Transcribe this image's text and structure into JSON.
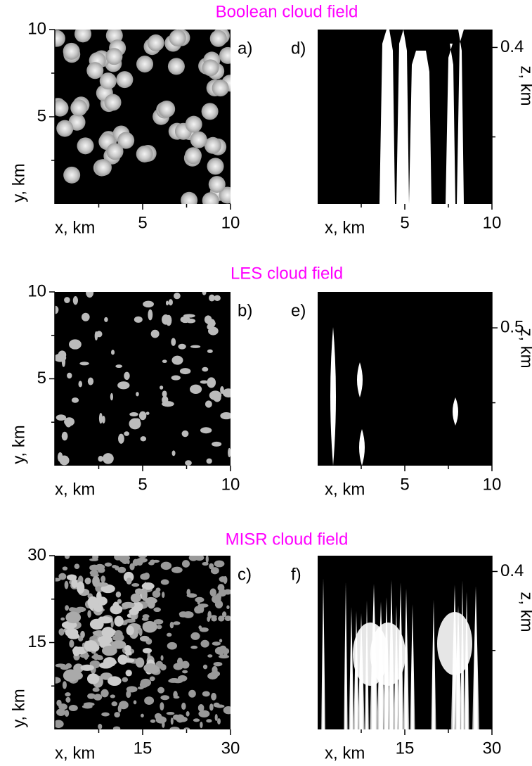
{
  "chart_data": [
    {
      "type": "image",
      "title": "Boolean cloud field",
      "panel_label": "a)",
      "xlabel": "x, km",
      "ylabel": "y, km",
      "xlim": [
        0,
        10
      ],
      "ylim": [
        0,
        10
      ],
      "xticks": [
        5,
        10
      ],
      "yticks": [
        5,
        10
      ],
      "xminor": [
        2.5,
        7.5
      ],
      "yminor": [
        2.5,
        7.5
      ],
      "y_axis_side": "left",
      "field": "boolean"
    },
    {
      "type": "image",
      "panel_label": "d)",
      "xlabel": "x, km",
      "ylabel": "z, km",
      "xlim": [
        0,
        10
      ],
      "ylim": [
        0.05,
        0.44
      ],
      "xticks": [
        5,
        10
      ],
      "yticks": [
        0.4
      ],
      "xminor": [
        2.5,
        7.5
      ],
      "yminor": [
        0.2
      ],
      "y_axis_side": "right",
      "field": "boolean-vertical"
    },
    {
      "type": "image",
      "title": "LES cloud field",
      "panel_label": "b)",
      "xlabel": "x, km",
      "ylabel": "y, km",
      "xlim": [
        0,
        10
      ],
      "ylim": [
        0,
        10
      ],
      "xticks": [
        5,
        10
      ],
      "yticks": [
        5,
        10
      ],
      "xminor": [
        2.5,
        7.5
      ],
      "yminor": [
        2.5,
        7.5
      ],
      "y_axis_side": "left",
      "field": "les"
    },
    {
      "type": "image",
      "panel_label": "e)",
      "xlabel": "x, km",
      "ylabel": "z, km",
      "xlim": [
        0,
        10
      ],
      "ylim": [
        0.04,
        0.62
      ],
      "xticks": [
        5,
        10
      ],
      "yticks": [
        0.5
      ],
      "xminor": [
        2.5,
        7.5
      ],
      "yminor": [
        0.25
      ],
      "y_axis_side": "right",
      "field": "les-vertical"
    },
    {
      "type": "image",
      "title": "MISR cloud field",
      "panel_label": "c)",
      "xlabel": "x, km",
      "ylabel": "y, km",
      "xlim": [
        0,
        30
      ],
      "ylim": [
        0,
        30
      ],
      "xticks": [
        15,
        30
      ],
      "yticks": [
        15,
        30
      ],
      "xminor": [
        7.5,
        22.5
      ],
      "yminor": [
        7.5,
        22.5
      ],
      "y_axis_side": "left",
      "field": "misr"
    },
    {
      "type": "image",
      "panel_label": "f)",
      "xlabel": "x, km",
      "ylabel": "z, km",
      "xlim": [
        0,
        30
      ],
      "ylim": [
        0,
        0.44
      ],
      "xticks": [
        15,
        30
      ],
      "yticks": [
        0.4
      ],
      "xminor": [
        7.5,
        22.5
      ],
      "yminor": [
        0.2
      ],
      "y_axis_side": "right",
      "field": "misr-vertical"
    }
  ]
}
